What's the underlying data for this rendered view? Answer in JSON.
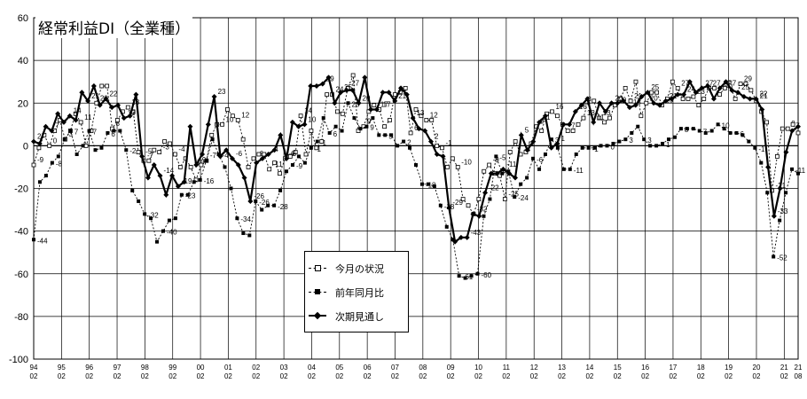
{
  "chart_data": {
    "type": "line",
    "title": "経常利益DI（全業種）",
    "xlabel": "",
    "ylabel": "",
    "ylim": [
      -100,
      60
    ],
    "yticks": [
      60,
      40,
      20,
      0,
      -20,
      -40,
      -60,
      -80,
      -100
    ],
    "grid": true,
    "legend_position": "center",
    "x_tick_years": [
      "94",
      "95",
      "96",
      "97",
      "98",
      "99",
      "00",
      "01",
      "02",
      "03",
      "04",
      "05",
      "06",
      "07",
      "08",
      "09",
      "10",
      "11",
      "12",
      "13",
      "14",
      "15",
      "16",
      "17",
      "18",
      "19",
      "20",
      "21",
      "21"
    ],
    "x_tick_months": [
      "02",
      "02",
      "02",
      "02",
      "02",
      "02",
      "02",
      "02",
      "02",
      "02",
      "02",
      "02",
      "02",
      "02",
      "02",
      "02",
      "02",
      "02",
      "02",
      "02",
      "02",
      "02",
      "02",
      "02",
      "02",
      "02",
      "02",
      "02",
      "08"
    ],
    "x_start": "1994-02",
    "series": [
      {
        "name": "今月の状況",
        "marker": "open-square",
        "style": "dashed",
        "values": [
          -9,
          -1,
          5,
          0,
          7,
          12,
          3,
          7,
          15,
          11,
          0,
          7,
          20,
          28,
          28,
          8,
          12,
          16,
          18,
          16,
          -3,
          -7,
          -7,
          -2,
          -3,
          2,
          1,
          -4,
          -10,
          -6,
          -10,
          -16,
          -9,
          -7,
          5,
          10,
          10,
          17,
          14,
          12,
          3,
          -10,
          -6,
          -4,
          -4,
          -11,
          -8,
          -13,
          -6,
          -5,
          -3,
          14,
          -4,
          7,
          -1,
          2,
          24,
          24,
          16,
          15,
          27,
          33,
          7,
          9,
          16,
          19,
          17,
          9,
          12,
          24,
          25,
          27,
          6,
          17,
          14,
          12,
          12,
          0,
          -1,
          -10,
          -6,
          -10,
          -25,
          -28,
          -32,
          -25,
          -12,
          -9,
          -13,
          -14,
          -25,
          -3,
          2,
          -4,
          -3,
          1,
          9,
          7,
          15,
          16,
          14,
          10,
          7,
          7,
          10,
          13,
          22,
          21,
          13,
          11,
          13,
          19,
          22,
          27,
          21,
          30,
          14,
          20,
          25,
          25,
          19,
          22,
          30,
          27,
          22,
          22,
          23,
          19,
          22,
          27,
          27,
          24,
          27,
          28,
          22,
          29,
          29,
          26,
          21,
          16,
          11,
          -21,
          -5,
          8,
          8,
          10,
          6
        ]
      },
      {
        "name": "前年同月比",
        "marker": "filled-square",
        "style": "dashed",
        "values": [
          -44,
          -17,
          -14,
          -8,
          -5,
          3,
          7,
          -4,
          0,
          7,
          -2,
          -1,
          6,
          7,
          7,
          -2,
          -21,
          -26,
          -32,
          -34,
          -45,
          -40,
          -35,
          -34,
          -23,
          -23,
          -17,
          -16,
          -7,
          3,
          -4,
          -10,
          -20,
          -34,
          -41,
          -42,
          -26,
          -30,
          -28,
          -28,
          -21,
          -12,
          -9,
          -5,
          -8,
          -1,
          2,
          13,
          6,
          9,
          7,
          20,
          13,
          8,
          9,
          13,
          5,
          5,
          5,
          0,
          2,
          -1,
          -9,
          -18,
          -18,
          -19,
          -28,
          -38,
          -44,
          -61,
          -62,
          -61,
          -60,
          -33,
          -25,
          -5,
          -13,
          -12,
          -24,
          -18,
          -15,
          -6,
          -11,
          -4,
          3,
          -1,
          -11,
          -11,
          -4,
          -1,
          -1,
          -1,
          0,
          0,
          1,
          2,
          3,
          6,
          9,
          3,
          0,
          0,
          1,
          3,
          4,
          8,
          8,
          8,
          7,
          6,
          7,
          10,
          8,
          6,
          6,
          5,
          2,
          -1,
          -8,
          -22,
          -52,
          -35,
          -22,
          -11,
          -13
        ]
      },
      {
        "name": "次期見通し",
        "marker": "filled-diamond",
        "style": "solid",
        "values": [
          2,
          1,
          9,
          7,
          15,
          11,
          14,
          12,
          25,
          21,
          28,
          19,
          22,
          18,
          19,
          13,
          14,
          24,
          -5,
          -15,
          -9,
          -14,
          -23,
          -14,
          -19,
          -17,
          9,
          -9,
          -4,
          10,
          23,
          -5,
          -2,
          -6,
          -9,
          -15,
          -26,
          -8,
          -6,
          -4,
          -2,
          5,
          -6,
          11,
          9,
          10,
          28,
          28,
          29,
          32,
          20,
          25,
          26,
          26,
          20,
          32,
          17,
          17,
          25,
          25,
          21,
          27,
          24,
          13,
          8,
          7,
          2,
          -4,
          -5,
          -29,
          -45,
          -43,
          -43,
          -32,
          -33,
          -22,
          -13,
          -13,
          -11,
          -13,
          -15,
          5,
          -2,
          2,
          11,
          14,
          -1,
          1,
          10,
          10,
          16,
          19,
          22,
          11,
          20,
          16,
          20,
          20,
          21,
          18,
          19,
          23,
          25,
          20,
          19,
          21,
          22,
          24,
          24,
          30,
          25,
          27,
          28,
          22,
          27,
          30,
          26,
          25,
          23,
          22,
          22,
          17,
          -10,
          -33,
          -20,
          -3,
          7,
          9
        ]
      }
    ]
  }
}
